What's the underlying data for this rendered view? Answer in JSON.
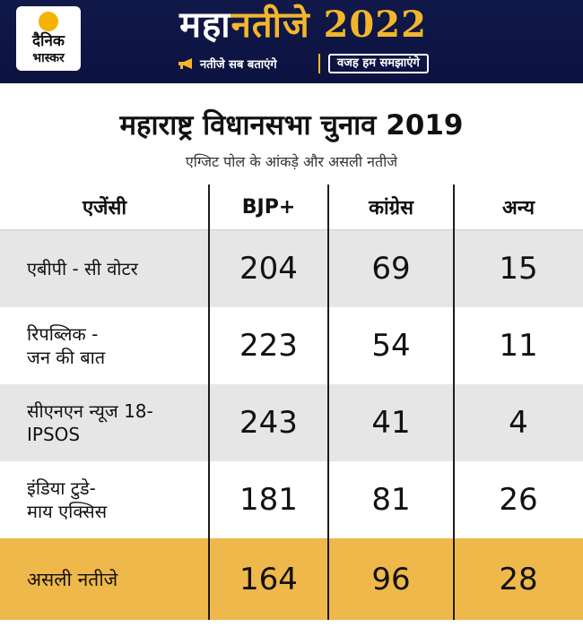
{
  "banner": {
    "logo_line1": "दैनिक",
    "logo_line2": "भास्कर",
    "title_part1": "महा",
    "title_part2": "नतीजे",
    "title_year": "2022",
    "tagline_left": "नतीजे सब बताएंगे",
    "tagline_right": "वजह हम समझाएंगे"
  },
  "heading": {
    "title": "महाराष्ट्र विधानसभा चुनाव 2019",
    "subtitle": "एग्जिट पोल के आंकड़े और असली नतीजे"
  },
  "table": {
    "columns": [
      "एजेंसी",
      "BJP+",
      "कांग्रेस",
      "अन्य"
    ],
    "rows": [
      {
        "agency_line1": "एबीपी - सी वोटर",
        "agency_line2": "",
        "bjp": "204",
        "congress": "69",
        "others": "15"
      },
      {
        "agency_line1": "रिपब्लिक -",
        "agency_line2": "जन की बात",
        "bjp": "223",
        "congress": "54",
        "others": "11"
      },
      {
        "agency_line1": "सीएनएन न्यूज 18-",
        "agency_line2": "IPSOS",
        "bjp": "243",
        "congress": "41",
        "others": "4"
      },
      {
        "agency_line1": "इंडिया टुडे-",
        "agency_line2": "माय एक्सिस",
        "bjp": "181",
        "congress": "81",
        "others": "26"
      }
    ],
    "result": {
      "label": "असली नतीजे",
      "bjp": "164",
      "congress": "96",
      "others": "28"
    }
  },
  "colors": {
    "banner_bg": "#11194a",
    "accent_gold": "#f3b62b",
    "row_shade": "#e6e6e6",
    "result_row": "#efb84a"
  }
}
